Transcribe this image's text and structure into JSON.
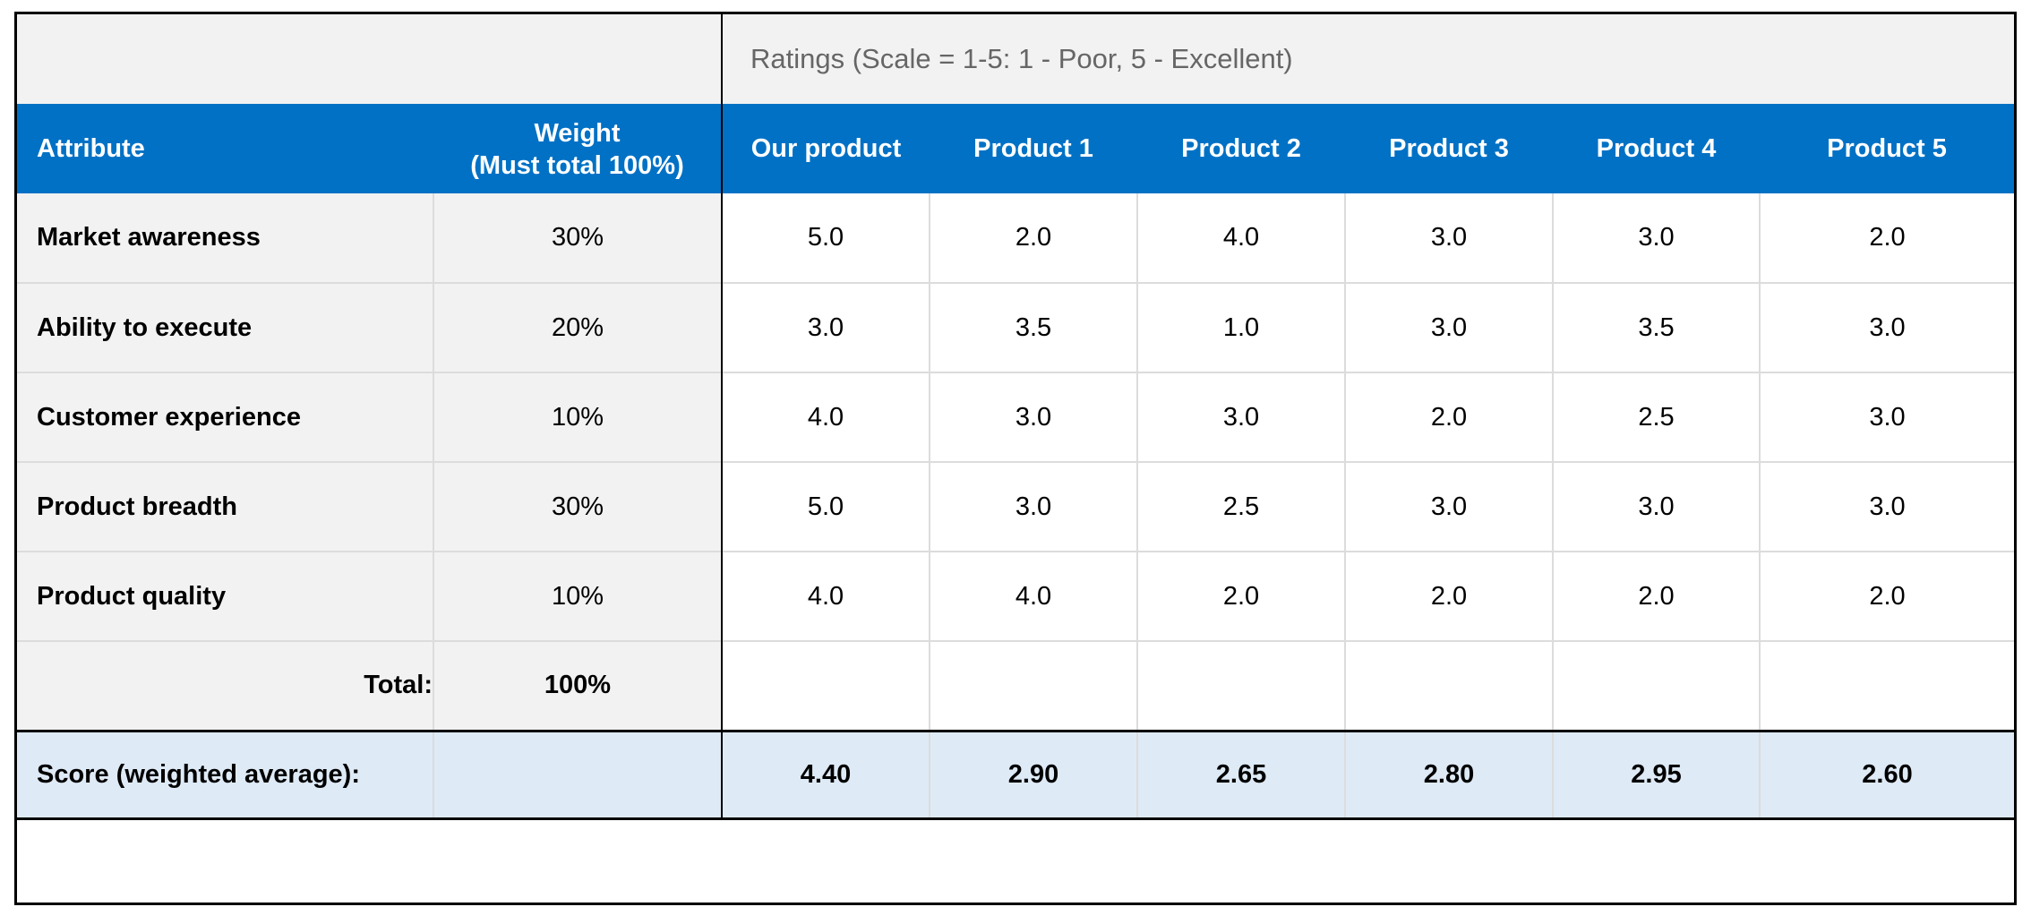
{
  "ratings_caption": "Ratings (Scale = 1-5: 1 - Poor, 5 - Excellent)",
  "headers": {
    "attribute": "Attribute",
    "weight_line1": "Weight",
    "weight_line2": "(Must total 100%)",
    "products": [
      "Our product",
      "Product 1",
      "Product 2",
      "Product 3",
      "Product 4",
      "Product 5"
    ]
  },
  "rows": [
    {
      "attribute": "Market awareness",
      "weight": "30%",
      "ratings": [
        "5.0",
        "2.0",
        "4.0",
        "3.0",
        "3.0",
        "2.0"
      ]
    },
    {
      "attribute": "Ability to execute",
      "weight": "20%",
      "ratings": [
        "3.0",
        "3.5",
        "1.0",
        "3.0",
        "3.5",
        "3.0"
      ]
    },
    {
      "attribute": "Customer experience",
      "weight": "10%",
      "ratings": [
        "4.0",
        "3.0",
        "3.0",
        "2.0",
        "2.5",
        "3.0"
      ]
    },
    {
      "attribute": "Product breadth",
      "weight": "30%",
      "ratings": [
        "5.0",
        "3.0",
        "2.5",
        "3.0",
        "3.0",
        "3.0"
      ]
    },
    {
      "attribute": "Product quality",
      "weight": "10%",
      "ratings": [
        "4.0",
        "4.0",
        "2.0",
        "2.0",
        "2.0",
        "2.0"
      ]
    }
  ],
  "total": {
    "label": "Total:",
    "weight": "100%"
  },
  "score": {
    "label": "Score (weighted average):",
    "values": [
      "4.40",
      "2.90",
      "2.65",
      "2.80",
      "2.95",
      "2.60"
    ]
  },
  "colors": {
    "header_blue": "#0071c5",
    "label_gray": "#f2f2f2",
    "score_blue": "#deeaf6"
  }
}
